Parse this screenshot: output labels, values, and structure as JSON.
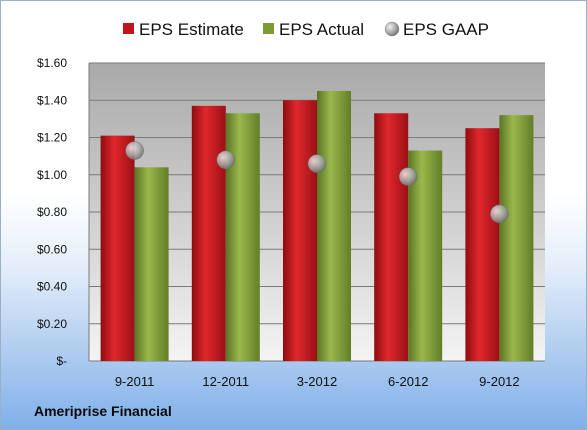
{
  "footer": {
    "label": "Ameriprise Financial"
  },
  "colors": {
    "estimate": "#c0151b",
    "actual": "#7d9b35",
    "gaap": "#b8b8b8"
  },
  "chart_data": {
    "type": "bar",
    "title": "",
    "xlabel": "",
    "ylabel": "",
    "categories": [
      "9-2011",
      "12-2011",
      "3-2012",
      "6-2012",
      "9-2012"
    ],
    "ylim": [
      0,
      1.6
    ],
    "yticks": [
      0,
      0.2,
      0.4,
      0.6,
      0.8,
      1.0,
      1.2,
      1.4,
      1.6
    ],
    "ytick_labels": [
      "$-",
      "$0.20",
      "$0.40",
      "$0.60",
      "$0.80",
      "$1.00",
      "$1.20",
      "$1.40",
      "$1.60"
    ],
    "grid": true,
    "legend": "top",
    "series": [
      {
        "name": "EPS Estimate",
        "kind": "bar",
        "values": [
          1.21,
          1.37,
          1.4,
          1.33,
          1.25
        ]
      },
      {
        "name": "EPS Actual",
        "kind": "bar",
        "values": [
          1.04,
          1.33,
          1.45,
          1.13,
          1.32
        ]
      },
      {
        "name": "EPS GAAP",
        "kind": "scatter",
        "values": [
          1.13,
          1.08,
          1.06,
          0.99,
          0.79
        ]
      }
    ]
  }
}
